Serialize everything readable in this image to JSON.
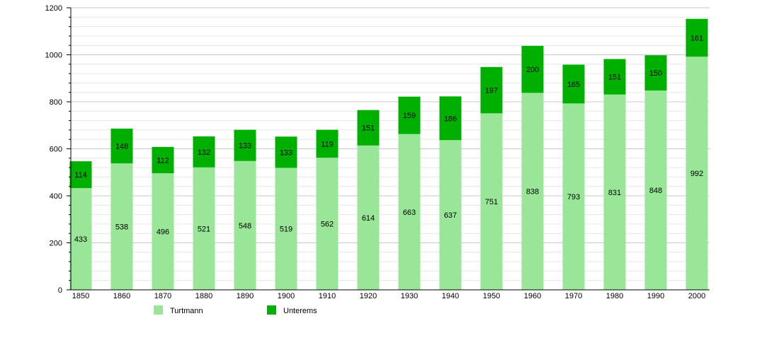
{
  "chart_data": {
    "type": "bar",
    "stacked": true,
    "categories": [
      "1850",
      "1860",
      "1870",
      "1880",
      "1890",
      "1900",
      "1910",
      "1920",
      "1930",
      "1940",
      "1950",
      "1960",
      "1970",
      "1980",
      "1990",
      "2000"
    ],
    "series": [
      {
        "name": "Turtmann",
        "color": "#99e699",
        "values": [
          433,
          538,
          496,
          521,
          548,
          519,
          562,
          614,
          663,
          637,
          751,
          838,
          793,
          831,
          848,
          992
        ]
      },
      {
        "name": "Unterems",
        "color": "#00b000",
        "values": [
          114,
          148,
          112,
          132,
          133,
          133,
          119,
          151,
          159,
          186,
          197,
          200,
          165,
          151,
          150,
          161
        ]
      }
    ],
    "ylim": [
      0,
      1200
    ],
    "yticks": [
      "0",
      "200",
      "400",
      "600",
      "800",
      "1000",
      "1200"
    ],
    "grid": true,
    "legend_position": "bottom",
    "data_labels": true
  }
}
